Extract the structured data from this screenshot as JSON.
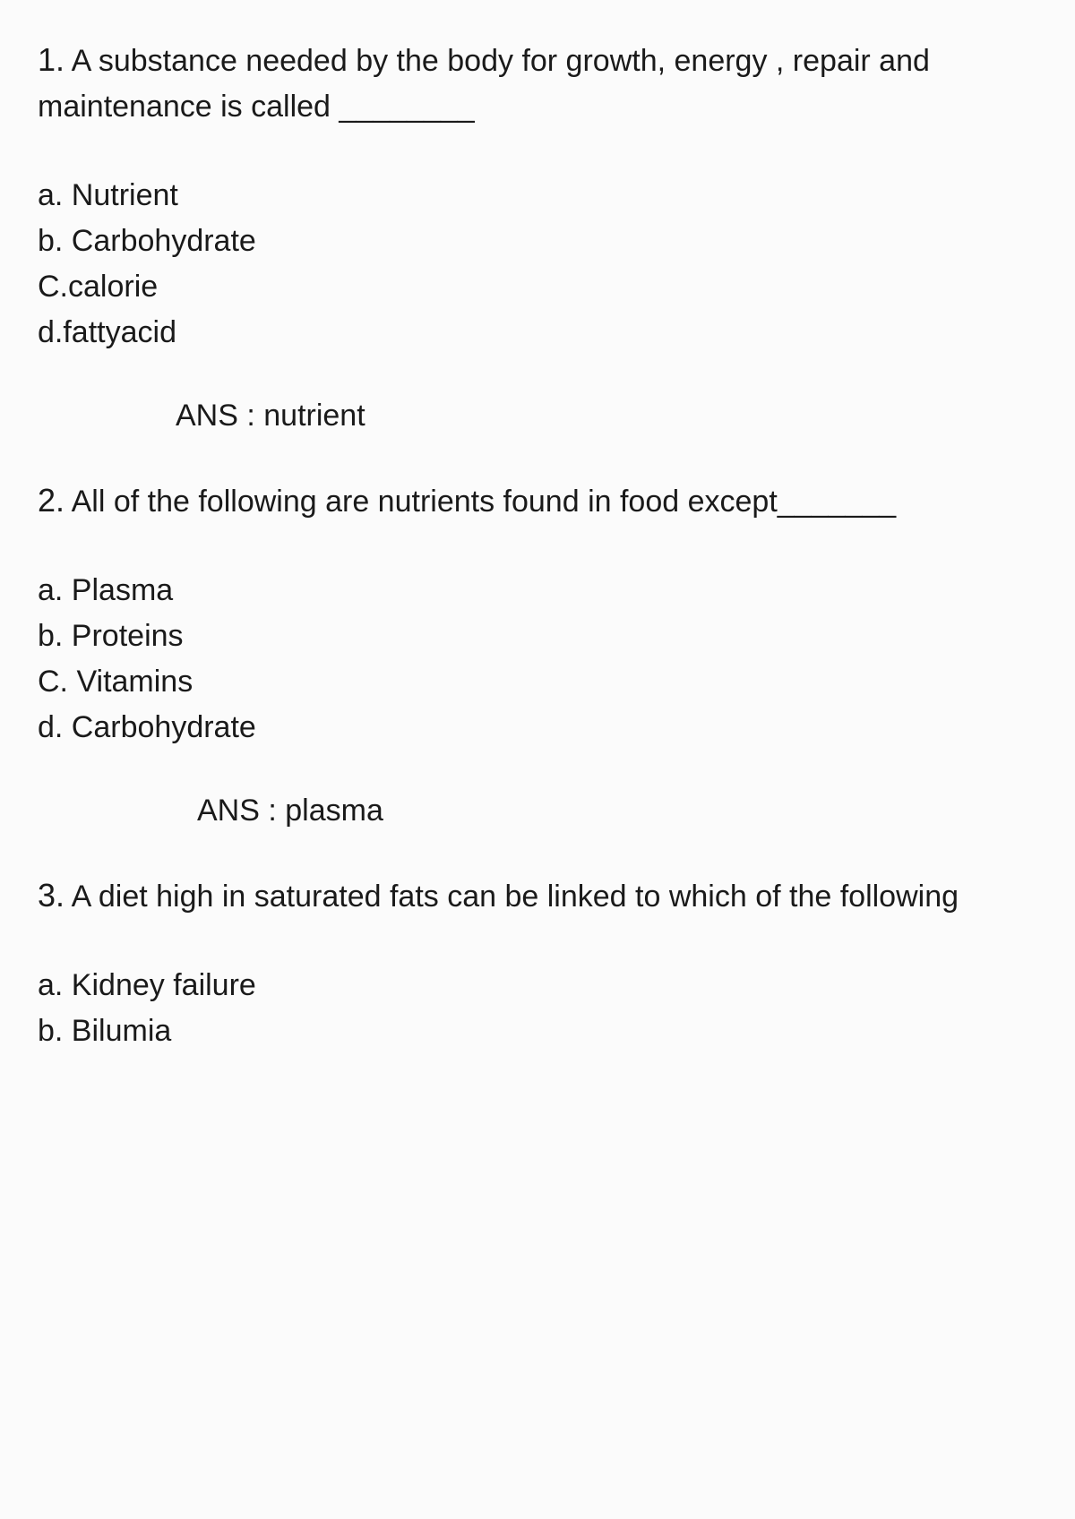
{
  "questions": [
    {
      "number": "1.",
      "text": "A substance needed by the body for growth, energy , repair and maintenance is called ________",
      "options": [
        "a. Nutrient",
        "b. Carbohydrate",
        "C.calorie",
        "d.fattyacid"
      ],
      "answer": "ANS : nutrient"
    },
    {
      "number": "2.",
      "text": "All of the following  are nutrients found in  food except_______",
      "options": [
        "a. Plasma",
        "b. Proteins",
        "C. Vitamins",
        "d. Carbohydrate"
      ],
      "answer": "ANS : plasma"
    },
    {
      "number": "3.",
      "text": " A diet high in saturated fats can be linked to which of the following",
      "options": [
        "a. Kidney failure",
        "b. Bilumia"
      ],
      "answer": ""
    }
  ],
  "styling": {
    "background_color": "#fbfbfb",
    "text_color": "#1a1a1a",
    "font_family": "Arial, Helvetica, sans-serif",
    "question_font_size": 34,
    "number_font_size": 36,
    "font_weight": 500,
    "line_height": 1.5
  }
}
